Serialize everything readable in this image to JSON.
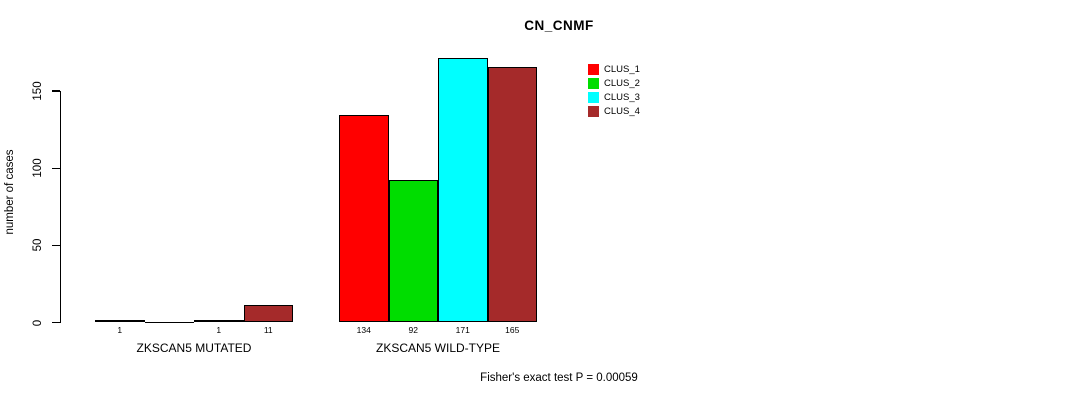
{
  "chart_data": {
    "type": "bar",
    "title": "CN_CNMF",
    "ylabel": "number of cases",
    "xlabel": "",
    "ylim": [
      0,
      175
    ],
    "yticks": [
      0,
      50,
      100,
      150
    ],
    "grid": false,
    "legend_position": "top-right",
    "series": [
      {
        "name": "CLUS_1",
        "color": "#ff0000"
      },
      {
        "name": "CLUS_2",
        "color": "#00dd00"
      },
      {
        "name": "CLUS_3",
        "color": "#00ffff"
      },
      {
        "name": "CLUS_4",
        "color": "#a52a2a"
      }
    ],
    "categories": [
      "ZKSCAN5 MUTATED",
      "ZKSCAN5 WILD-TYPE"
    ],
    "groups": [
      {
        "label": "ZKSCAN5 MUTATED",
        "values": [
          1,
          0,
          1,
          11
        ],
        "bar_labels": [
          "1",
          "",
          "1",
          "11"
        ]
      },
      {
        "label": "ZKSCAN5 WILD-TYPE",
        "values": [
          134,
          92,
          171,
          165
        ],
        "bar_labels": [
          "134",
          "92",
          "171",
          "165"
        ]
      }
    ],
    "footnote": "Fisher's exact test P = 0.00059"
  }
}
